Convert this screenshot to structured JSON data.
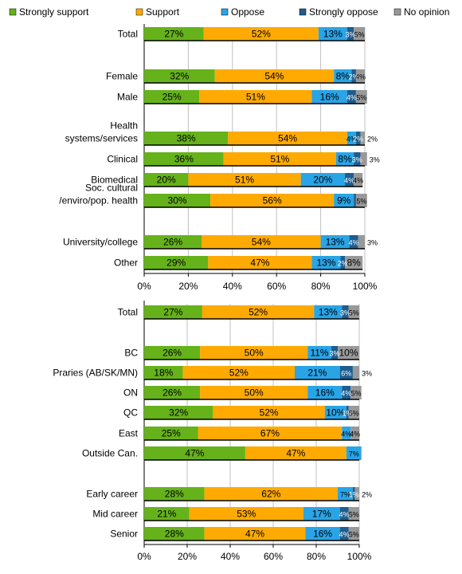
{
  "chart_data": {
    "type": "bar",
    "orientation": "horizontal",
    "stacked": true,
    "legend": {
      "placement": "top",
      "entries": [
        {
          "name": "Strongly support",
          "color": "#66b21b"
        },
        {
          "name": "Support",
          "color": "#ffaa00"
        },
        {
          "name": "Oppose",
          "color": "#29a4e6"
        },
        {
          "name": "Strongly oppose",
          "color": "#1d5d8f"
        },
        {
          "name": "No opinion",
          "color": "#999999"
        }
      ]
    },
    "panels": [
      {
        "xlim": [
          0,
          100
        ],
        "xticks": [
          "0%",
          "20%",
          "40%",
          "60%",
          "80%",
          "100%"
        ],
        "grid": true,
        "bars": [
          {
            "label": [
              "Total"
            ],
            "values": [
              27,
              52,
              13,
              3,
              5
            ],
            "labels": [
              "27%",
              "52%",
              "13%",
              "3%",
              "5%"
            ]
          },
          {
            "label": [
              "Female"
            ],
            "values": [
              32,
              54,
              8,
              2,
              4
            ],
            "labels": [
              "32%",
              "54%",
              "8%",
              "2%",
              "4%"
            ]
          },
          {
            "label": [
              "Male"
            ],
            "values": [
              25,
              51,
              16,
              4,
              5
            ],
            "labels": [
              "25%",
              "51%",
              "16%",
              "4%",
              "5%"
            ]
          },
          {
            "label": [
              "Health",
              "systems/services"
            ],
            "values": [
              38,
              54,
              4,
              2,
              2
            ],
            "labels": [
              "38%",
              "54%",
              "4%",
              "2%",
              "2%"
            ]
          },
          {
            "label": [
              "Clinical"
            ],
            "values": [
              36,
              51,
              8,
              3,
              3
            ],
            "labels": [
              "36%",
              "51%",
              "8%",
              "3%",
              "3%"
            ]
          },
          {
            "label": [
              "Biomedical"
            ],
            "values": [
              20,
              51,
              20,
              4,
              4
            ],
            "labels": [
              "20%",
              "51%",
              "20%",
              "4%",
              "4%"
            ]
          },
          {
            "label": [
              "Soc. cultural",
              "/enviro/pop. health"
            ],
            "values": [
              30,
              56,
              9,
              1,
              5
            ],
            "labels": [
              "30%",
              "56%",
              "9%",
              "",
              "5%"
            ]
          },
          {
            "label": [
              "University/college"
            ],
            "values": [
              26,
              54,
              13,
              4,
              3
            ],
            "labels": [
              "26%",
              "54%",
              "13%",
              "4%",
              "3%"
            ]
          },
          {
            "label": [
              "Other"
            ],
            "values": [
              29,
              47,
              13,
              2,
              8
            ],
            "labels": [
              "29%",
              "47%",
              "13%",
              "2%",
              "8%"
            ]
          }
        ]
      },
      {
        "xlim": [
          0,
          100
        ],
        "xticks": [
          "0%",
          "20%",
          "40%",
          "60%",
          "80%",
          "100%"
        ],
        "grid": true,
        "bars": [
          {
            "label": [
              "Total"
            ],
            "values": [
              27,
              52,
              13,
              3,
              5
            ],
            "labels": [
              "27%",
              "52%",
              "13%",
              "3%",
              "5%"
            ]
          },
          {
            "label": [
              "BC"
            ],
            "values": [
              26,
              50,
              11,
              3,
              10
            ],
            "labels": [
              "26%",
              "50%",
              "11%",
              "3%",
              "10%"
            ]
          },
          {
            "label": [
              "Praries (AB/SK/MN)"
            ],
            "values": [
              18,
              52,
              21,
              6,
              3
            ],
            "labels": [
              "18%",
              "52%",
              "21%",
              "6%",
              "3%"
            ]
          },
          {
            "label": [
              "ON"
            ],
            "values": [
              26,
              50,
              16,
              4,
              5
            ],
            "labels": [
              "26%",
              "50%",
              "16%",
              "4%",
              "5%"
            ]
          },
          {
            "label": [
              "QC"
            ],
            "values": [
              32,
              52,
              10,
              1,
              5
            ],
            "labels": [
              "32%",
              "52%",
              "10%",
              "1%",
              "5%"
            ]
          },
          {
            "label": [
              "East"
            ],
            "values": [
              25,
              67,
              4,
              0,
              4
            ],
            "labels": [
              "25%",
              "67%",
              "4%",
              "",
              "4%"
            ]
          },
          {
            "label": [
              "Outside Can."
            ],
            "values": [
              47,
              47,
              7,
              0,
              0
            ],
            "labels": [
              "47%",
              "47%",
              "7%",
              "",
              ""
            ]
          },
          {
            "label": [
              "Early career"
            ],
            "values": [
              28,
              62,
              7,
              1,
              2
            ],
            "labels": [
              "28%",
              "62%",
              "7%",
              "1%",
              "2%"
            ]
          },
          {
            "label": [
              "Mid career"
            ],
            "values": [
              21,
              53,
              17,
              4,
              5
            ],
            "labels": [
              "21%",
              "53%",
              "17%",
              "4%",
              "5%"
            ]
          },
          {
            "label": [
              "Senior"
            ],
            "values": [
              28,
              47,
              16,
              4,
              5
            ],
            "labels": [
              "28%",
              "47%",
              "16%",
              "4%",
              "5%"
            ]
          }
        ]
      }
    ]
  }
}
